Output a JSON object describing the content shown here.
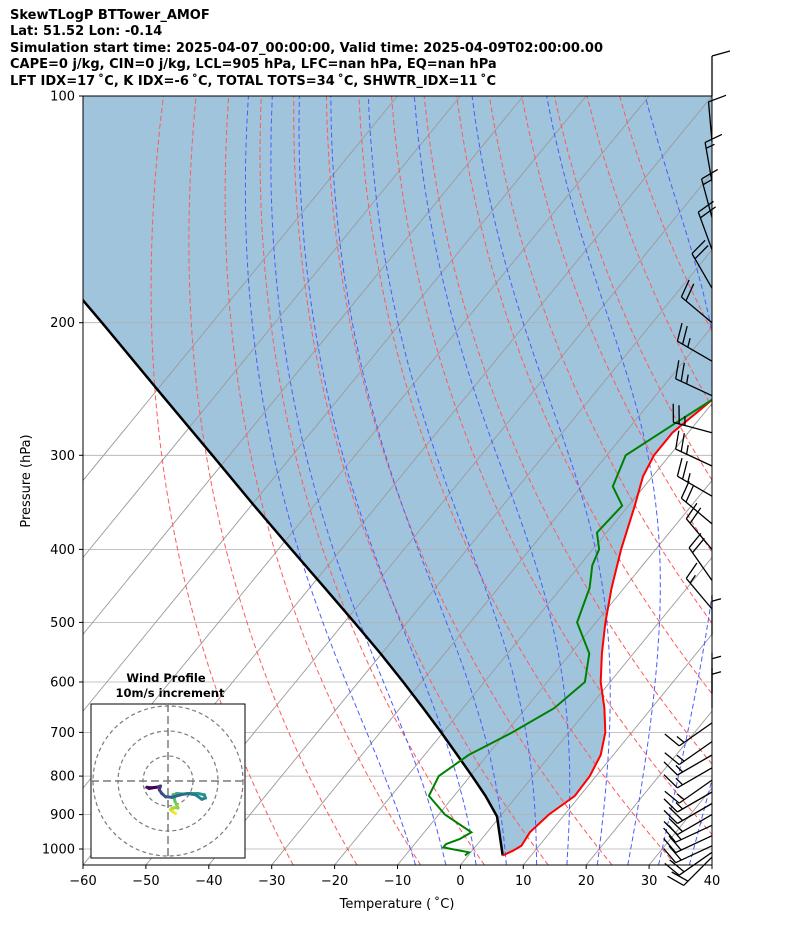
{
  "header": {
    "title": "SkewTLogP BTTower_AMOF",
    "location": "Lat: 51.52   Lon: -0.14",
    "times": "Simulation start time: 2025-04-07_00:00:00, Valid time: 2025-04-09T02:00:00.00",
    "indices1": "CAPE=0 j/kg, CIN=0 j/kg, LCL=905 hPa, LFC=nan hPa, EQ=nan hPa",
    "indices2": "LFT IDX=17$^\\circ$C, K IDX=-6$^\\circ$C, TOTAL TOTS=34$^\\circ$C, SHWTR_IDX=11$^\\circ$C",
    "indices2_display": "LFT IDX=17 ˚C, K IDX=-6 ˚C, TOTAL TOTS=34 ˚C, SHWTR_IDX=11 ˚C"
  },
  "chart_data": {
    "type": "line",
    "subtype": "skew-t log-p",
    "xlabel": "Temperature ($^\\circ$C)",
    "xlabel_display": "Temperature ( ˚C)",
    "ylabel": "Pressure (hPa)",
    "xlim": [
      -60,
      40
    ],
    "ylim": [
      1050,
      100
    ],
    "x_ticks": [
      -60,
      -50,
      -40,
      -30,
      -20,
      -10,
      0,
      10,
      20,
      30,
      40
    ],
    "y_ticks": [
      1000,
      900,
      800,
      700,
      600,
      500,
      400,
      300,
      200,
      100
    ],
    "isotherms_deg_c": [
      -110,
      -100,
      -90,
      -80,
      -70,
      -60,
      -50,
      -40,
      -30,
      -20,
      -10,
      0,
      10,
      20,
      30,
      40
    ],
    "dry_adiabats_theta_k": [
      -30,
      -20,
      -10,
      0,
      10,
      20,
      30,
      40,
      50,
      60,
      70,
      80,
      90,
      100,
      110
    ],
    "moist_adiabats_deg_c": [
      -10,
      -5,
      0,
      5,
      10,
      15,
      20,
      25,
      30,
      35,
      40
    ],
    "colors": {
      "temperature": "#ff0000",
      "dewpoint": "#008000",
      "parcel": "#000000",
      "shade": "#a1c4dd",
      "isotherm": "#9a9a9a",
      "dry_adiabat": "#ff5a5a",
      "moist_adiabat": "#4a5cff"
    },
    "series": [
      {
        "name": "Temperature",
        "pressure": [
          1020,
          1005,
          990,
          950,
          900,
          850,
          800,
          750,
          700,
          650,
          600,
          550,
          500,
          450,
          400,
          350,
          320,
          300,
          280,
          260,
          240,
          220,
          200,
          180,
          160,
          140,
          120,
          100
        ],
        "value": [
          5.5,
          6.5,
          7.2,
          6.8,
          7.5,
          9.2,
          9.0,
          8.0,
          5.8,
          2.5,
          -1.5,
          -5.0,
          -8.5,
          -12.0,
          -15.5,
          -19.0,
          -21.5,
          -22.5,
          -22.5,
          -21.0,
          -19.5,
          -17.5,
          -13.5,
          -7.5,
          -3.0,
          2.0,
          7.5,
          13.0
        ]
      },
      {
        "name": "Dewpoint",
        "pressure": [
          1020,
          1010,
          1000,
          995,
          985,
          970,
          950,
          900,
          850,
          800,
          750,
          700,
          650,
          600,
          550,
          500,
          450,
          420,
          400,
          380,
          350,
          330,
          300,
          270,
          250,
          230,
          210,
          195,
          180,
          170,
          150,
          130,
          115,
          100
        ],
        "value": [
          -0.5,
          -0.3,
          -3.5,
          -5.0,
          -5.0,
          -3.5,
          -2.5,
          -9.0,
          -14.0,
          -15.0,
          -13.0,
          -9.0,
          -5.5,
          -4.0,
          -7.0,
          -13.0,
          -15.5,
          -18.0,
          -19.0,
          -21.5,
          -21.0,
          -25.0,
          -27.0,
          -23.0,
          -20.0,
          -18.0,
          -17.5,
          -19.5,
          -20.0,
          -20.5,
          -17.0,
          -11.0,
          -6.5,
          -2.0
        ]
      },
      {
        "name": "Parcel",
        "pressure": [
          1020,
          905,
          850,
          800,
          750,
          700,
          650,
          600,
          550,
          500,
          450,
          400,
          350,
          300,
          250,
          200,
          150,
          100
        ],
        "value": [
          5.5,
          -0.5,
          -5.0,
          -9.7,
          -14.8,
          -20.3,
          -26.3,
          -32.9,
          -40.2,
          -48.4,
          -57.6,
          -67.9,
          -79.5,
          -92.7,
          -108.4,
          -127.5,
          -152.4,
          -188.3
        ]
      }
    ],
    "wind_barbs": {
      "pressure": [
        1025,
        1010,
        990,
        960,
        930,
        900,
        870,
        840,
        810,
        780,
        750,
        720,
        680,
        650,
        620,
        520,
        480,
        440,
        400,
        370,
        340,
        310,
        280,
        250,
        225,
        200,
        180,
        160,
        145,
        130,
        115,
        100
      ],
      "direction_deg": [
        225,
        235,
        245,
        245,
        245,
        240,
        240,
        240,
        235,
        240,
        240,
        235,
        235,
        0,
        0,
        0,
        320,
        325,
        320,
        310,
        300,
        295,
        285,
        295,
        300,
        310,
        330,
        340,
        345,
        350,
        355,
        0
      ],
      "speed_kt": [
        20,
        20,
        20,
        20,
        20,
        20,
        20,
        15,
        15,
        15,
        15,
        15,
        15,
        5,
        5,
        5,
        15,
        20,
        20,
        20,
        25,
        25,
        25,
        25,
        25,
        20,
        20,
        20,
        15,
        15,
        10,
        10
      ]
    },
    "hodograph": {
      "title": "Wind Profile",
      "subtitle": "10m/s increment",
      "ring_step_ms": 10,
      "ring_count": 3,
      "max_range_ms": 30,
      "colormap": "viridis",
      "u_ms": [
        3.0,
        1.8,
        1.0,
        1.5,
        2.5,
        4.0,
        3.2,
        2.8,
        2.5,
        2.0,
        3.5,
        6.0,
        9.0,
        12.0,
        14.5,
        15.0,
        13.5,
        11.0,
        8.0,
        5.0,
        1.5,
        -1.0,
        -2.5,
        -3.5,
        -3.0,
        -4.5,
        -6.5,
        -8.5,
        -7.5,
        -5.0
      ],
      "v_ms": [
        -13.0,
        -12.2,
        -11.5,
        -11.0,
        -10.7,
        -10.8,
        -9.0,
        -8.2,
        -7.0,
        -5.5,
        -5.0,
        -5.2,
        -5.0,
        -5.0,
        -5.5,
        -6.8,
        -7.3,
        -5.5,
        -5.0,
        -5.5,
        -6.5,
        -6.3,
        -5.0,
        -3.5,
        -2.0,
        -2.5,
        -2.7,
        -2.5,
        -3.0,
        -2.5
      ]
    }
  }
}
